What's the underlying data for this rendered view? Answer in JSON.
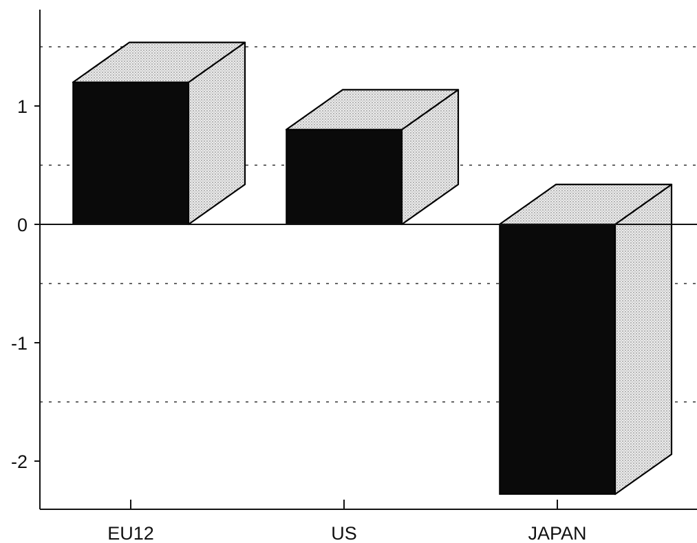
{
  "chart_data": {
    "type": "bar",
    "style": "3d",
    "categories": [
      "EU12",
      "US",
      "JAPAN"
    ],
    "values": [
      1.2,
      0.8,
      -2.28
    ],
    "ylim": [
      -2.35,
      1.8
    ],
    "yticks": [
      -2,
      -1,
      0,
      1
    ],
    "ytick_labels": [
      "-2",
      "-1",
      "0",
      "1"
    ],
    "gridlines": [
      -1.5,
      -0.5,
      0.5,
      1.5
    ],
    "grid": "dashed",
    "title": "",
    "xlabel": "",
    "ylabel": "",
    "colors": {
      "bar_front": "#0a0a0a",
      "bar_side": "#dcdcdc",
      "bar_top": "#e6e6e6",
      "axis": "#111111",
      "grid": "#333333"
    }
  }
}
